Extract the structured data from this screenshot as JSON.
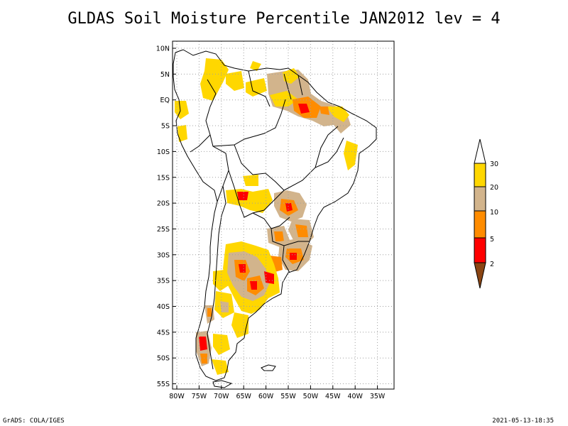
{
  "title": "GLDAS Soil Moisture Percentile JAN2012 lev = 4",
  "footer": {
    "credit": "GrADS: COLA/IGES",
    "timestamp": "2021-05-13-18:35"
  },
  "map": {
    "lat_labels": [
      "10N",
      "5N",
      "EQ",
      "5S",
      "10S",
      "15S",
      "20S",
      "25S",
      "30S",
      "35S",
      "40S",
      "45S",
      "50S",
      "55S"
    ],
    "lon_labels": [
      "80W",
      "75W",
      "70W",
      "65W",
      "60W",
      "55W",
      "50W",
      "45W",
      "40W",
      "35W"
    ],
    "lat_values": [
      10,
      5,
      0,
      -5,
      -10,
      -15,
      -20,
      -25,
      -30,
      -35,
      -40,
      -45,
      -50,
      -55
    ],
    "lon_values": [
      -80,
      -75,
      -70,
      -65,
      -60,
      -55,
      -50,
      -45,
      -40,
      -35
    ]
  },
  "legend": {
    "labels": [
      "30",
      "20",
      "10",
      "5",
      "2"
    ],
    "colors": [
      "#ffffff",
      "#ffd700",
      "#d2b48c",
      "#ff8c00",
      "#ff0000",
      "#8b4513"
    ]
  }
}
